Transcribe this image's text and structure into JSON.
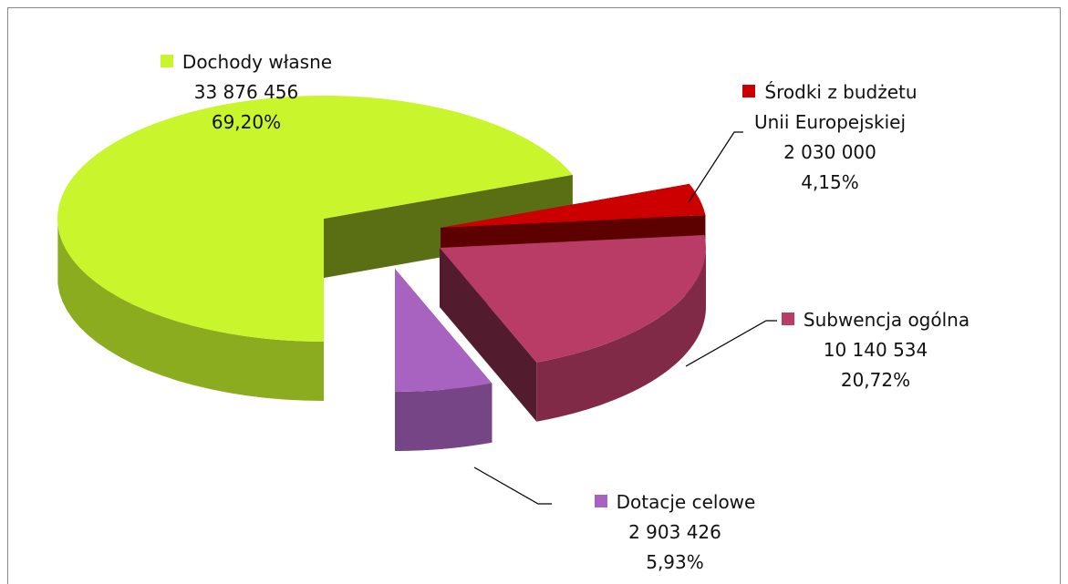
{
  "chart_data": {
    "type": "pie3d",
    "categories": [
      "Dochody własne",
      "Środki z budżetu Unii Europejskiej",
      "Subwencja ogólna",
      "Dotacje celowe"
    ],
    "values": [
      33876456,
      2030000,
      10140534,
      2903426
    ],
    "value_labels": [
      "33 876 456",
      "2 030 000",
      "10 140 534",
      "2 903 426"
    ],
    "percentages": [
      69.2,
      4.15,
      20.72,
      5.93
    ],
    "percentage_labels": [
      "69,20%",
      "4,15%",
      "20,72%",
      "5,93%"
    ],
    "colors": [
      "#c8f52c",
      "#cc0000",
      "#b83c66",
      "#a862c0"
    ]
  }
}
